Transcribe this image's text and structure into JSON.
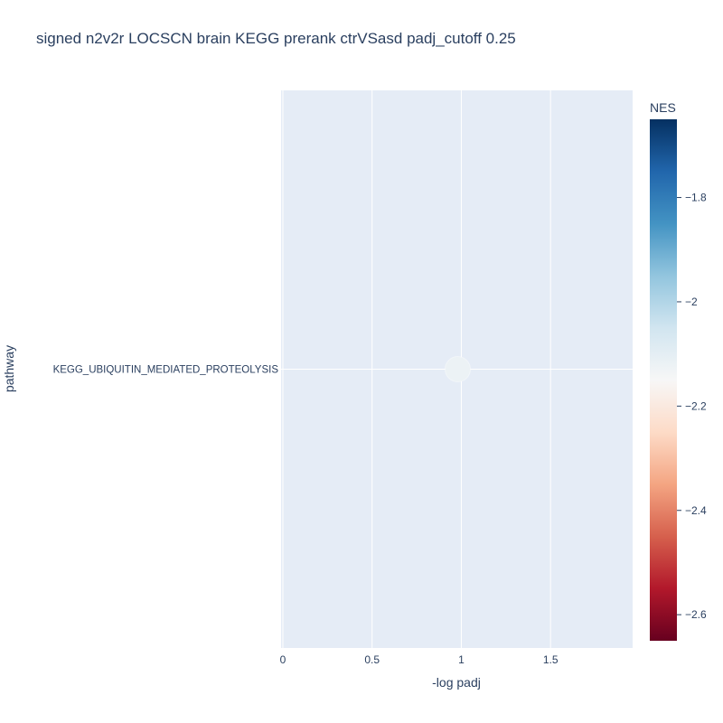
{
  "chart_data": {
    "type": "scatter",
    "title": "signed n2v2r LOCSCN brain KEGG prerank ctrVSasd padj_cutoff 0.25",
    "xlabel": "-log padj",
    "ylabel": "pathway",
    "xlim": [
      -0.01,
      1.96
    ],
    "x_ticks": [
      0,
      0.5,
      1,
      1.5
    ],
    "x_tick_labels": [
      "0",
      "0.5",
      "1",
      "1.5"
    ],
    "categories": [
      "KEGG_UBIQUITIN_MEDIATED_PROTEOLYSIS"
    ],
    "points": [
      {
        "pathway": "KEGG_UBIQUITIN_MEDIATED_PROTEOLYSIS",
        "x": 0.98,
        "nes": -2.12
      }
    ],
    "grid": true,
    "colorbar": {
      "title": "NES",
      "colorscale": "RdBu",
      "range": [
        -2.65,
        -1.65
      ],
      "ticks": [
        -1.8,
        -2,
        -2.2,
        -2.4,
        -2.6
      ],
      "tick_labels": [
        "−1.8",
        "−2",
        "−2.2",
        "−2.4",
        "−2.6"
      ]
    }
  }
}
